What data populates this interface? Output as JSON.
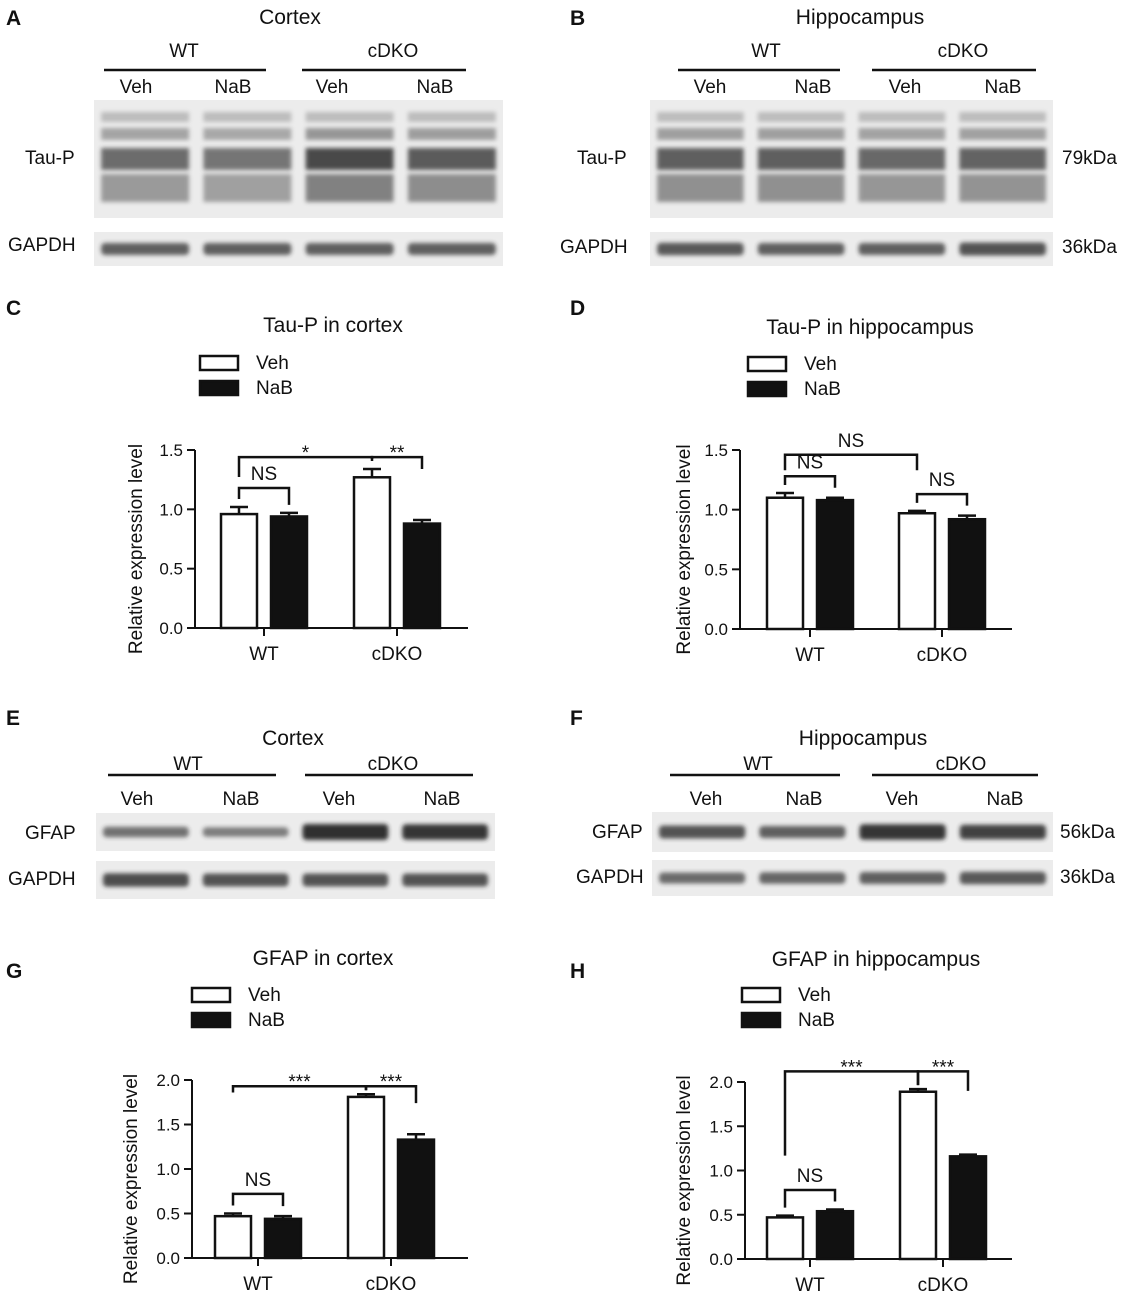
{
  "blots": {
    "A": {
      "panel": "A",
      "title": "Cortex",
      "groups": [
        "WT",
        "cDKO"
      ],
      "lanes": [
        "Veh",
        "NaB",
        "Veh",
        "NaB"
      ],
      "rows": [
        {
          "label": "Tau-P",
          "size": ""
        },
        {
          "label": "GAPDH",
          "size": ""
        }
      ]
    },
    "B": {
      "panel": "B",
      "title": "Hippocampus",
      "groups": [
        "WT",
        "cDKO"
      ],
      "lanes": [
        "Veh",
        "NaB",
        "Veh",
        "NaB"
      ],
      "rows": [
        {
          "label": "Tau-P",
          "size": "79kDa"
        },
        {
          "label": "GAPDH",
          "size": "36kDa"
        }
      ]
    },
    "E": {
      "panel": "E",
      "title": "Cortex",
      "groups": [
        "WT",
        "cDKO"
      ],
      "lanes": [
        "Veh",
        "NaB",
        "Veh",
        "NaB"
      ],
      "rows": [
        {
          "label": "GFAP",
          "size": ""
        },
        {
          "label": "GAPDH",
          "size": ""
        }
      ]
    },
    "F": {
      "panel": "F",
      "title": "Hippocampus",
      "groups": [
        "WT",
        "cDKO"
      ],
      "lanes": [
        "Veh",
        "NaB",
        "Veh",
        "NaB"
      ],
      "rows": [
        {
          "label": "GFAP",
          "size": "56kDa"
        },
        {
          "label": "GAPDH",
          "size": "36kDa"
        }
      ]
    }
  },
  "chart_data": [
    {
      "panel": "C",
      "type": "bar",
      "title": "Tau-P in cortex",
      "ylabel": "Relative expression level",
      "xlabel": "",
      "categories": [
        "WT",
        "cDKO"
      ],
      "ylim": [
        0,
        1.5
      ],
      "yticks": [
        "0.0",
        "0.5",
        "1.0",
        "1.5"
      ],
      "series": [
        {
          "name": "Veh",
          "values": [
            0.96,
            1.27
          ],
          "errors": [
            0.06,
            0.07
          ]
        },
        {
          "name": "NaB",
          "values": [
            0.94,
            0.88
          ],
          "errors": [
            0.03,
            0.03
          ]
        }
      ],
      "significance": [
        "*",
        "NS",
        "**"
      ]
    },
    {
      "panel": "D",
      "type": "bar",
      "title": "Tau-P in hippocampus",
      "ylabel": "Relative expression level",
      "xlabel": "",
      "categories": [
        "WT",
        "cDKO"
      ],
      "ylim": [
        0,
        1.5
      ],
      "yticks": [
        "0.0",
        "0.5",
        "1.0",
        "1.5"
      ],
      "series": [
        {
          "name": "Veh",
          "values": [
            1.1,
            0.97
          ],
          "errors": [
            0.04,
            0.02
          ]
        },
        {
          "name": "NaB",
          "values": [
            1.08,
            0.92
          ],
          "errors": [
            0.02,
            0.03
          ]
        }
      ],
      "significance": [
        "NS",
        "NS",
        "NS"
      ]
    },
    {
      "panel": "G",
      "type": "bar",
      "title": "GFAP in cortex",
      "ylabel": "Relative expression level",
      "xlabel": "",
      "categories": [
        "WT",
        "cDKO"
      ],
      "ylim": [
        0,
        2.0
      ],
      "yticks": [
        "0.0",
        "0.5",
        "1.0",
        "1.5",
        "2.0"
      ],
      "series": [
        {
          "name": "Veh",
          "values": [
            0.47,
            1.81
          ],
          "errors": [
            0.03,
            0.03
          ]
        },
        {
          "name": "NaB",
          "values": [
            0.44,
            1.33
          ],
          "errors": [
            0.03,
            0.06
          ]
        }
      ],
      "significance": [
        "***",
        "NS",
        "***"
      ]
    },
    {
      "panel": "H",
      "type": "bar",
      "title": "GFAP in hippocampus",
      "ylabel": "Relative expression level",
      "xlabel": "",
      "categories": [
        "WT",
        "cDKO"
      ],
      "ylim": [
        0,
        2.0
      ],
      "yticks": [
        "0.0",
        "0.5",
        "1.0",
        "1.5",
        "2.0"
      ],
      "series": [
        {
          "name": "Veh",
          "values": [
            0.47,
            1.89
          ],
          "errors": [
            0.02,
            0.03
          ]
        },
        {
          "name": "NaB",
          "values": [
            0.54,
            1.16
          ],
          "errors": [
            0.02,
            0.02
          ]
        }
      ],
      "significance": [
        "***",
        "NS",
        "***"
      ]
    }
  ]
}
